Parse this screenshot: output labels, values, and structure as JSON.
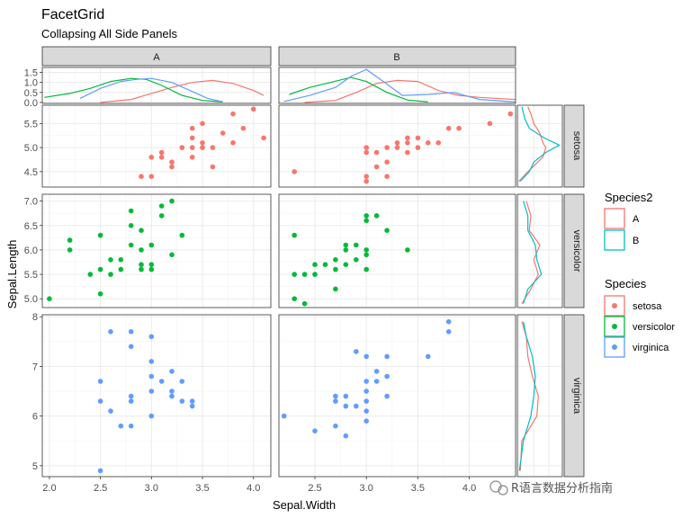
{
  "title": "FacetGrid",
  "subtitle": "Collapsing All Side Panels",
  "watermark": "R语言数据分析指南",
  "chart_data": {
    "type": "scatter",
    "xlabel": "Sepal.Width",
    "ylabel": "Sepal.Length",
    "columns": [
      "A",
      "B"
    ],
    "rows": [
      "setosa",
      "versicolor",
      "virginica"
    ],
    "xlim_by_column": [
      [
        1.93,
        4.17
      ],
      [
        2.15,
        4.45
      ]
    ],
    "x_ticks_by_column": [
      [
        2.0,
        2.5,
        3.0,
        3.5,
        4.0
      ],
      [
        2.5,
        3.0,
        3.5,
        4.0
      ]
    ],
    "x_tick_labels_by_column": [
      [
        "2.0",
        "2.5",
        "3.0",
        "3.5",
        "4.0"
      ],
      [
        "2.5",
        "3.0",
        "3.5",
        "4.0"
      ]
    ],
    "row_ylims": [
      [
        4.18,
        5.88
      ],
      [
        4.82,
        7.14
      ],
      [
        4.78,
        8.04
      ]
    ],
    "row_y_ticks": [
      [
        4.5,
        5.0,
        5.5
      ],
      [
        5.0,
        5.5,
        6.0,
        6.5,
        7.0
      ],
      [
        5,
        6,
        7,
        8
      ]
    ],
    "row_y_tick_labels": [
      [
        "4.5",
        "5.0",
        "5.5"
      ],
      [
        "5.0",
        "5.5",
        "6.0",
        "6.5",
        "7.0"
      ],
      [
        "5",
        "6",
        "7",
        "8"
      ]
    ],
    "top_density_ylim": [
      -0.05,
      1.75
    ],
    "top_density_ticks": [
      0.0,
      0.5,
      1.0,
      1.5
    ],
    "top_density_tick_labels": [
      "0.0",
      "0.5",
      "1.0",
      "1.5"
    ],
    "species_colors": {
      "setosa": "#F8766D",
      "versicolor": "#00BA38",
      "virginica": "#619CFF"
    },
    "group_colors": {
      "A": "#F8766D",
      "B": "#00BFC4"
    },
    "legends": [
      {
        "title": "Species2",
        "items": [
          "A",
          "B"
        ]
      },
      {
        "title": "Species",
        "items": [
          "setosa",
          "versicolor",
          "virginica"
        ]
      }
    ],
    "series": [
      {
        "column": "A",
        "species": "setosa",
        "points": [
          [
            2.9,
            4.4
          ],
          [
            3.0,
            4.4
          ],
          [
            3.0,
            4.8
          ],
          [
            3.1,
            4.8
          ],
          [
            3.1,
            4.9
          ],
          [
            3.2,
            4.7
          ],
          [
            3.2,
            4.6
          ],
          [
            3.4,
            4.8
          ],
          [
            3.4,
            5.0
          ],
          [
            3.4,
            5.2
          ],
          [
            3.4,
            5.4
          ],
          [
            3.5,
            5.0
          ],
          [
            3.5,
            5.1
          ],
          [
            3.5,
            5.5
          ],
          [
            3.6,
            4.6
          ],
          [
            3.7,
            5.3
          ],
          [
            3.8,
            5.1
          ],
          [
            3.8,
            5.7
          ],
          [
            3.9,
            5.4
          ],
          [
            4.0,
            5.8
          ],
          [
            4.1,
            5.2
          ],
          [
            3.3,
            5.0
          ],
          [
            3.6,
            5.0
          ]
        ]
      },
      {
        "column": "B",
        "species": "setosa",
        "points": [
          [
            2.3,
            4.5
          ],
          [
            3.0,
            4.3
          ],
          [
            3.0,
            4.4
          ],
          [
            3.0,
            4.9
          ],
          [
            3.0,
            5.0
          ],
          [
            3.1,
            4.9
          ],
          [
            3.1,
            4.6
          ],
          [
            3.2,
            4.4
          ],
          [
            3.2,
            4.7
          ],
          [
            3.2,
            5.0
          ],
          [
            3.3,
            5.0
          ],
          [
            3.3,
            5.1
          ],
          [
            3.4,
            5.1
          ],
          [
            3.4,
            4.9
          ],
          [
            3.4,
            5.2
          ],
          [
            3.5,
            5.2
          ],
          [
            3.5,
            5.0
          ],
          [
            3.6,
            5.1
          ],
          [
            3.7,
            5.1
          ],
          [
            3.8,
            5.4
          ],
          [
            3.9,
            5.4
          ],
          [
            4.2,
            5.5
          ],
          [
            4.4,
            5.7
          ]
        ]
      },
      {
        "column": "A",
        "species": "versicolor",
        "points": [
          [
            2.0,
            5.0
          ],
          [
            2.2,
            6.0
          ],
          [
            2.2,
            6.2
          ],
          [
            2.4,
            5.5
          ],
          [
            2.5,
            5.1
          ],
          [
            2.5,
            5.6
          ],
          [
            2.5,
            6.3
          ],
          [
            2.6,
            5.5
          ],
          [
            2.6,
            5.8
          ],
          [
            2.7,
            5.8
          ],
          [
            2.7,
            5.6
          ],
          [
            2.8,
            6.5
          ],
          [
            2.8,
            6.8
          ],
          [
            2.8,
            6.1
          ],
          [
            2.9,
            5.6
          ],
          [
            2.9,
            6.0
          ],
          [
            2.9,
            6.4
          ],
          [
            2.9,
            5.7
          ],
          [
            3.0,
            5.7
          ],
          [
            3.0,
            6.1
          ],
          [
            3.1,
            6.7
          ],
          [
            3.1,
            6.9
          ],
          [
            3.2,
            5.9
          ],
          [
            3.2,
            7.0
          ],
          [
            3.3,
            6.3
          ],
          [
            3.0,
            5.6
          ]
        ]
      },
      {
        "column": "B",
        "species": "versicolor",
        "points": [
          [
            2.3,
            5.0
          ],
          [
            2.3,
            6.3
          ],
          [
            2.3,
            5.5
          ],
          [
            2.4,
            4.9
          ],
          [
            2.4,
            5.5
          ],
          [
            2.5,
            5.5
          ],
          [
            2.6,
            5.7
          ],
          [
            2.7,
            5.6
          ],
          [
            2.7,
            5.8
          ],
          [
            2.7,
            5.2
          ],
          [
            2.8,
            6.0
          ],
          [
            2.8,
            5.7
          ],
          [
            2.9,
            6.1
          ],
          [
            2.9,
            5.8
          ],
          [
            3.0,
            5.6
          ],
          [
            3.0,
            5.9
          ],
          [
            3.0,
            6.0
          ],
          [
            3.0,
            6.6
          ],
          [
            3.0,
            6.7
          ],
          [
            3.1,
            6.7
          ],
          [
            3.2,
            6.4
          ],
          [
            3.4,
            6.0
          ],
          [
            2.8,
            6.1
          ],
          [
            2.5,
            5.7
          ]
        ]
      },
      {
        "column": "A",
        "species": "virginica",
        "points": [
          [
            2.5,
            4.9
          ],
          [
            2.5,
            6.3
          ],
          [
            2.5,
            6.7
          ],
          [
            2.6,
            7.7
          ],
          [
            2.6,
            6.1
          ],
          [
            2.7,
            5.8
          ],
          [
            2.8,
            7.7
          ],
          [
            2.8,
            7.4
          ],
          [
            2.8,
            6.4
          ],
          [
            2.8,
            6.3
          ],
          [
            2.8,
            5.8
          ],
          [
            3.0,
            7.1
          ],
          [
            3.0,
            6.8
          ],
          [
            3.0,
            6.5
          ],
          [
            3.0,
            6.0
          ],
          [
            3.0,
            7.6
          ],
          [
            3.1,
            6.7
          ],
          [
            3.2,
            6.9
          ],
          [
            3.2,
            6.4
          ],
          [
            3.3,
            6.7
          ],
          [
            3.3,
            6.3
          ],
          [
            3.4,
            6.3
          ],
          [
            3.4,
            6.2
          ],
          [
            3.2,
            6.5
          ]
        ]
      },
      {
        "column": "B",
        "species": "virginica",
        "points": [
          [
            2.2,
            6.0
          ],
          [
            2.5,
            5.7
          ],
          [
            2.7,
            6.4
          ],
          [
            2.7,
            6.3
          ],
          [
            2.7,
            5.8
          ],
          [
            2.8,
            6.2
          ],
          [
            2.8,
            6.4
          ],
          [
            2.8,
            5.6
          ],
          [
            2.9,
            7.3
          ],
          [
            3.0,
            6.5
          ],
          [
            3.0,
            6.7
          ],
          [
            3.0,
            6.1
          ],
          [
            3.0,
            5.9
          ],
          [
            3.0,
            7.2
          ],
          [
            3.1,
            6.9
          ],
          [
            3.1,
            6.7
          ],
          [
            3.2,
            6.8
          ],
          [
            3.2,
            6.4
          ],
          [
            3.2,
            7.2
          ],
          [
            3.6,
            7.2
          ],
          [
            3.8,
            7.7
          ],
          [
            3.8,
            7.9
          ],
          [
            3.0,
            6.3
          ],
          [
            2.9,
            6.2
          ]
        ]
      }
    ],
    "top_density": [
      {
        "column": "A",
        "species": "setosa",
        "points": [
          [
            2.5,
            0.0
          ],
          [
            2.8,
            0.15
          ],
          [
            3.0,
            0.45
          ],
          [
            3.2,
            0.75
          ],
          [
            3.4,
            1.0
          ],
          [
            3.6,
            1.1
          ],
          [
            3.8,
            0.95
          ],
          [
            4.0,
            0.6
          ],
          [
            4.1,
            0.35
          ]
        ]
      },
      {
        "column": "A",
        "species": "versicolor",
        "points": [
          [
            1.95,
            0.25
          ],
          [
            2.2,
            0.45
          ],
          [
            2.4,
            0.7
          ],
          [
            2.6,
            1.05
          ],
          [
            2.8,
            1.2
          ],
          [
            2.95,
            1.15
          ],
          [
            3.1,
            0.85
          ],
          [
            3.3,
            0.35
          ],
          [
            3.5,
            0.1
          ],
          [
            3.7,
            0.02
          ]
        ]
      },
      {
        "column": "A",
        "species": "virginica",
        "points": [
          [
            2.3,
            0.2
          ],
          [
            2.5,
            0.7
          ],
          [
            2.7,
            1.05
          ],
          [
            2.85,
            1.15
          ],
          [
            3.0,
            1.2
          ],
          [
            3.2,
            1.0
          ],
          [
            3.4,
            0.55
          ],
          [
            3.55,
            0.2
          ],
          [
            3.7,
            0.03
          ]
        ]
      },
      {
        "column": "B",
        "species": "setosa",
        "points": [
          [
            2.4,
            0.0
          ],
          [
            2.7,
            0.1
          ],
          [
            2.9,
            0.5
          ],
          [
            3.1,
            0.95
          ],
          [
            3.3,
            1.1
          ],
          [
            3.5,
            1.05
          ],
          [
            3.7,
            0.6
          ],
          [
            3.9,
            0.35
          ],
          [
            4.1,
            0.25
          ],
          [
            4.45,
            0.15
          ]
        ]
      },
      {
        "column": "B",
        "species": "versicolor",
        "points": [
          [
            2.25,
            0.4
          ],
          [
            2.45,
            0.75
          ],
          [
            2.65,
            1.0
          ],
          [
            2.85,
            1.25
          ],
          [
            3.0,
            1.05
          ],
          [
            3.2,
            0.5
          ],
          [
            3.4,
            0.12
          ],
          [
            3.6,
            0.02
          ]
        ]
      },
      {
        "column": "B",
        "species": "virginica",
        "points": [
          [
            2.2,
            0.05
          ],
          [
            2.45,
            0.35
          ],
          [
            2.7,
            0.75
          ],
          [
            2.85,
            1.3
          ],
          [
            3.0,
            1.65
          ],
          [
            3.15,
            1.1
          ],
          [
            3.35,
            0.35
          ],
          [
            3.6,
            0.4
          ],
          [
            3.85,
            0.5
          ],
          [
            4.1,
            0.15
          ],
          [
            4.45,
            0.02
          ]
        ]
      }
    ],
    "side_density": [
      {
        "row": "setosa",
        "group": "A",
        "points": [
          [
            4.3,
            0.0
          ],
          [
            4.5,
            0.3
          ],
          [
            4.8,
            0.8
          ],
          [
            5.0,
            0.9
          ],
          [
            5.1,
            0.8
          ],
          [
            5.3,
            0.7
          ],
          [
            5.5,
            0.5
          ],
          [
            5.7,
            0.4
          ],
          [
            5.85,
            0.3
          ]
        ]
      },
      {
        "row": "setosa",
        "group": "B",
        "points": [
          [
            4.3,
            0.05
          ],
          [
            4.5,
            0.35
          ],
          [
            4.7,
            0.5
          ],
          [
            4.9,
            0.9
          ],
          [
            5.05,
            1.35
          ],
          [
            5.2,
            0.85
          ],
          [
            5.4,
            0.35
          ],
          [
            5.6,
            0.2
          ],
          [
            5.85,
            0.1
          ]
        ]
      },
      {
        "row": "versicolor",
        "group": "A",
        "points": [
          [
            4.9,
            0.1
          ],
          [
            5.2,
            0.4
          ],
          [
            5.5,
            0.65
          ],
          [
            5.8,
            0.5
          ],
          [
            6.1,
            0.7
          ],
          [
            6.4,
            0.35
          ],
          [
            6.7,
            0.4
          ],
          [
            7.0,
            0.25
          ]
        ]
      },
      {
        "row": "versicolor",
        "group": "B",
        "points": [
          [
            4.9,
            0.15
          ],
          [
            5.2,
            0.3
          ],
          [
            5.5,
            0.75
          ],
          [
            5.8,
            0.6
          ],
          [
            6.1,
            0.55
          ],
          [
            6.4,
            0.3
          ],
          [
            6.7,
            0.3
          ],
          [
            7.0,
            0.15
          ]
        ]
      },
      {
        "row": "virginica",
        "group": "A",
        "points": [
          [
            4.9,
            0.05
          ],
          [
            5.5,
            0.1
          ],
          [
            6.0,
            0.6
          ],
          [
            6.4,
            0.65
          ],
          [
            6.8,
            0.45
          ],
          [
            7.2,
            0.3
          ],
          [
            7.6,
            0.25
          ],
          [
            7.9,
            0.1
          ]
        ]
      },
      {
        "row": "virginica",
        "group": "B",
        "points": [
          [
            4.9,
            0.02
          ],
          [
            5.5,
            0.15
          ],
          [
            6.0,
            0.4
          ],
          [
            6.4,
            0.5
          ],
          [
            6.8,
            0.55
          ],
          [
            7.2,
            0.45
          ],
          [
            7.6,
            0.25
          ],
          [
            7.9,
            0.15
          ]
        ]
      }
    ]
  }
}
